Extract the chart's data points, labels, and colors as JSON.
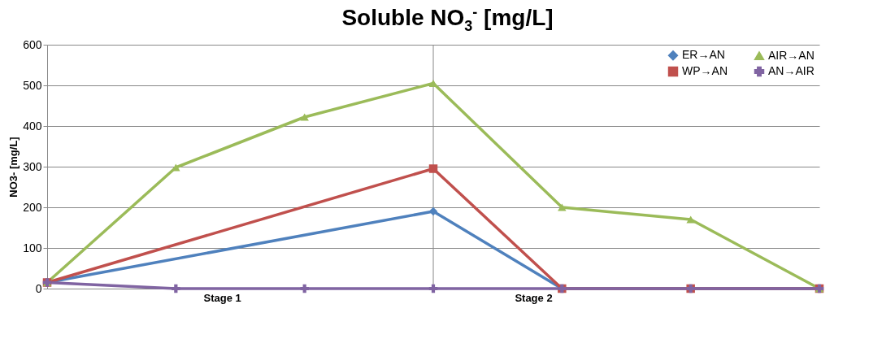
{
  "chart_data": {
    "type": "line",
    "title": "Soluble NO$_{3}$$^{-}$ [mg/L]",
    "ylabel": "NO3- [mg/L]",
    "categories": [
      null,
      null,
      null,
      null,
      null,
      null,
      null
    ],
    "annotations": [
      "Stage 1",
      "Stage 2"
    ],
    "ylim": [
      0,
      600
    ],
    "yticks": [
      0,
      100,
      200,
      300,
      400,
      500,
      600
    ],
    "grid": "y",
    "legend": "top right",
    "series": [
      {
        "name": "ER→AN",
        "color": "#4f81bd",
        "marker": "diamond",
        "values": [
          15,
          null,
          null,
          190,
          0,
          0,
          0
        ]
      },
      {
        "name": "WP→AN",
        "color": "#c0504d",
        "marker": "square",
        "values": [
          15,
          null,
          null,
          295,
          0,
          0,
          0
        ]
      },
      {
        "name": "AIR→AN",
        "color": "#9bbb59",
        "marker": "triangle",
        "values": [
          15,
          298,
          422,
          505,
          200,
          170,
          0
        ]
      },
      {
        "name": "AN→AIR",
        "color": "#8064a2",
        "marker": "cross",
        "values": [
          15,
          0,
          0,
          0,
          0,
          0,
          0
        ]
      }
    ]
  }
}
